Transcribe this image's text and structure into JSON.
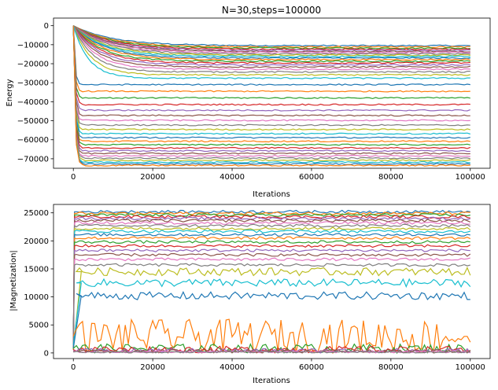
{
  "chart_data": [
    {
      "type": "line",
      "title": "N=30,steps=100000",
      "xlabel": "Iterations",
      "ylabel": "Energy",
      "xlim": [
        -5000,
        105000
      ],
      "ylim": [
        -75000,
        4000
      ],
      "xticks": [
        0,
        20000,
        40000,
        60000,
        80000,
        100000
      ],
      "xtick_labels": [
        "0",
        "20000",
        "40000",
        "60000",
        "80000",
        "100000"
      ],
      "yticks": [
        0,
        -10000,
        -20000,
        -30000,
        -40000,
        -50000,
        -60000,
        -70000
      ],
      "ytick_labels": [
        "0",
        "−10000",
        "−20000",
        "−30000",
        "−40000",
        "−50000",
        "−60000",
        "−70000"
      ],
      "grid": false,
      "legend": "none",
      "start_value": 0,
      "levels": [
        -10500,
        -11200,
        -11800,
        -12400,
        -13000,
        -13500,
        -14100,
        -14800,
        -15500,
        -16200,
        -17000,
        -17800,
        -18700,
        -19600,
        -20600,
        -21700,
        -22900,
        -24300,
        -25900,
        -27600,
        -31000,
        -34500,
        -38000,
        -41500,
        -44500,
        -47200,
        -49800,
        -52300,
        -54600,
        -56800,
        -58900,
        -60800,
        -62600,
        -64300,
        -65800,
        -67200,
        -68500,
        -69700,
        -70800,
        -71800,
        -72700,
        -73500
      ]
    },
    {
      "type": "line",
      "title": "",
      "xlabel": "Iterations",
      "ylabel": "|Magnetization|",
      "xlim": [
        -5000,
        105000
      ],
      "ylim": [
        -1000,
        26500
      ],
      "xticks": [
        0,
        20000,
        40000,
        60000,
        80000,
        100000
      ],
      "xtick_labels": [
        "0",
        "20000",
        "40000",
        "60000",
        "80000",
        "100000"
      ],
      "yticks": [
        0,
        5000,
        10000,
        15000,
        20000,
        25000
      ],
      "ytick_labels": [
        "0",
        "5000",
        "10000",
        "15000",
        "20000",
        "25000"
      ],
      "grid": false,
      "legend": "none",
      "levels": [
        25200,
        24900,
        24600,
        24300,
        24000,
        23600,
        23200,
        22700,
        22200,
        21700,
        21100,
        20500,
        19800,
        19100,
        18300,
        17500,
        16700,
        15700,
        14500,
        12500,
        10200,
        3000,
        800,
        600,
        400,
        300,
        200,
        150
      ]
    }
  ],
  "colors": [
    "#1f77b4",
    "#ff7f0e",
    "#2ca02c",
    "#d62728",
    "#9467bd",
    "#8c564b",
    "#e377c2",
    "#7f7f7f",
    "#bcbd22",
    "#17becf"
  ]
}
